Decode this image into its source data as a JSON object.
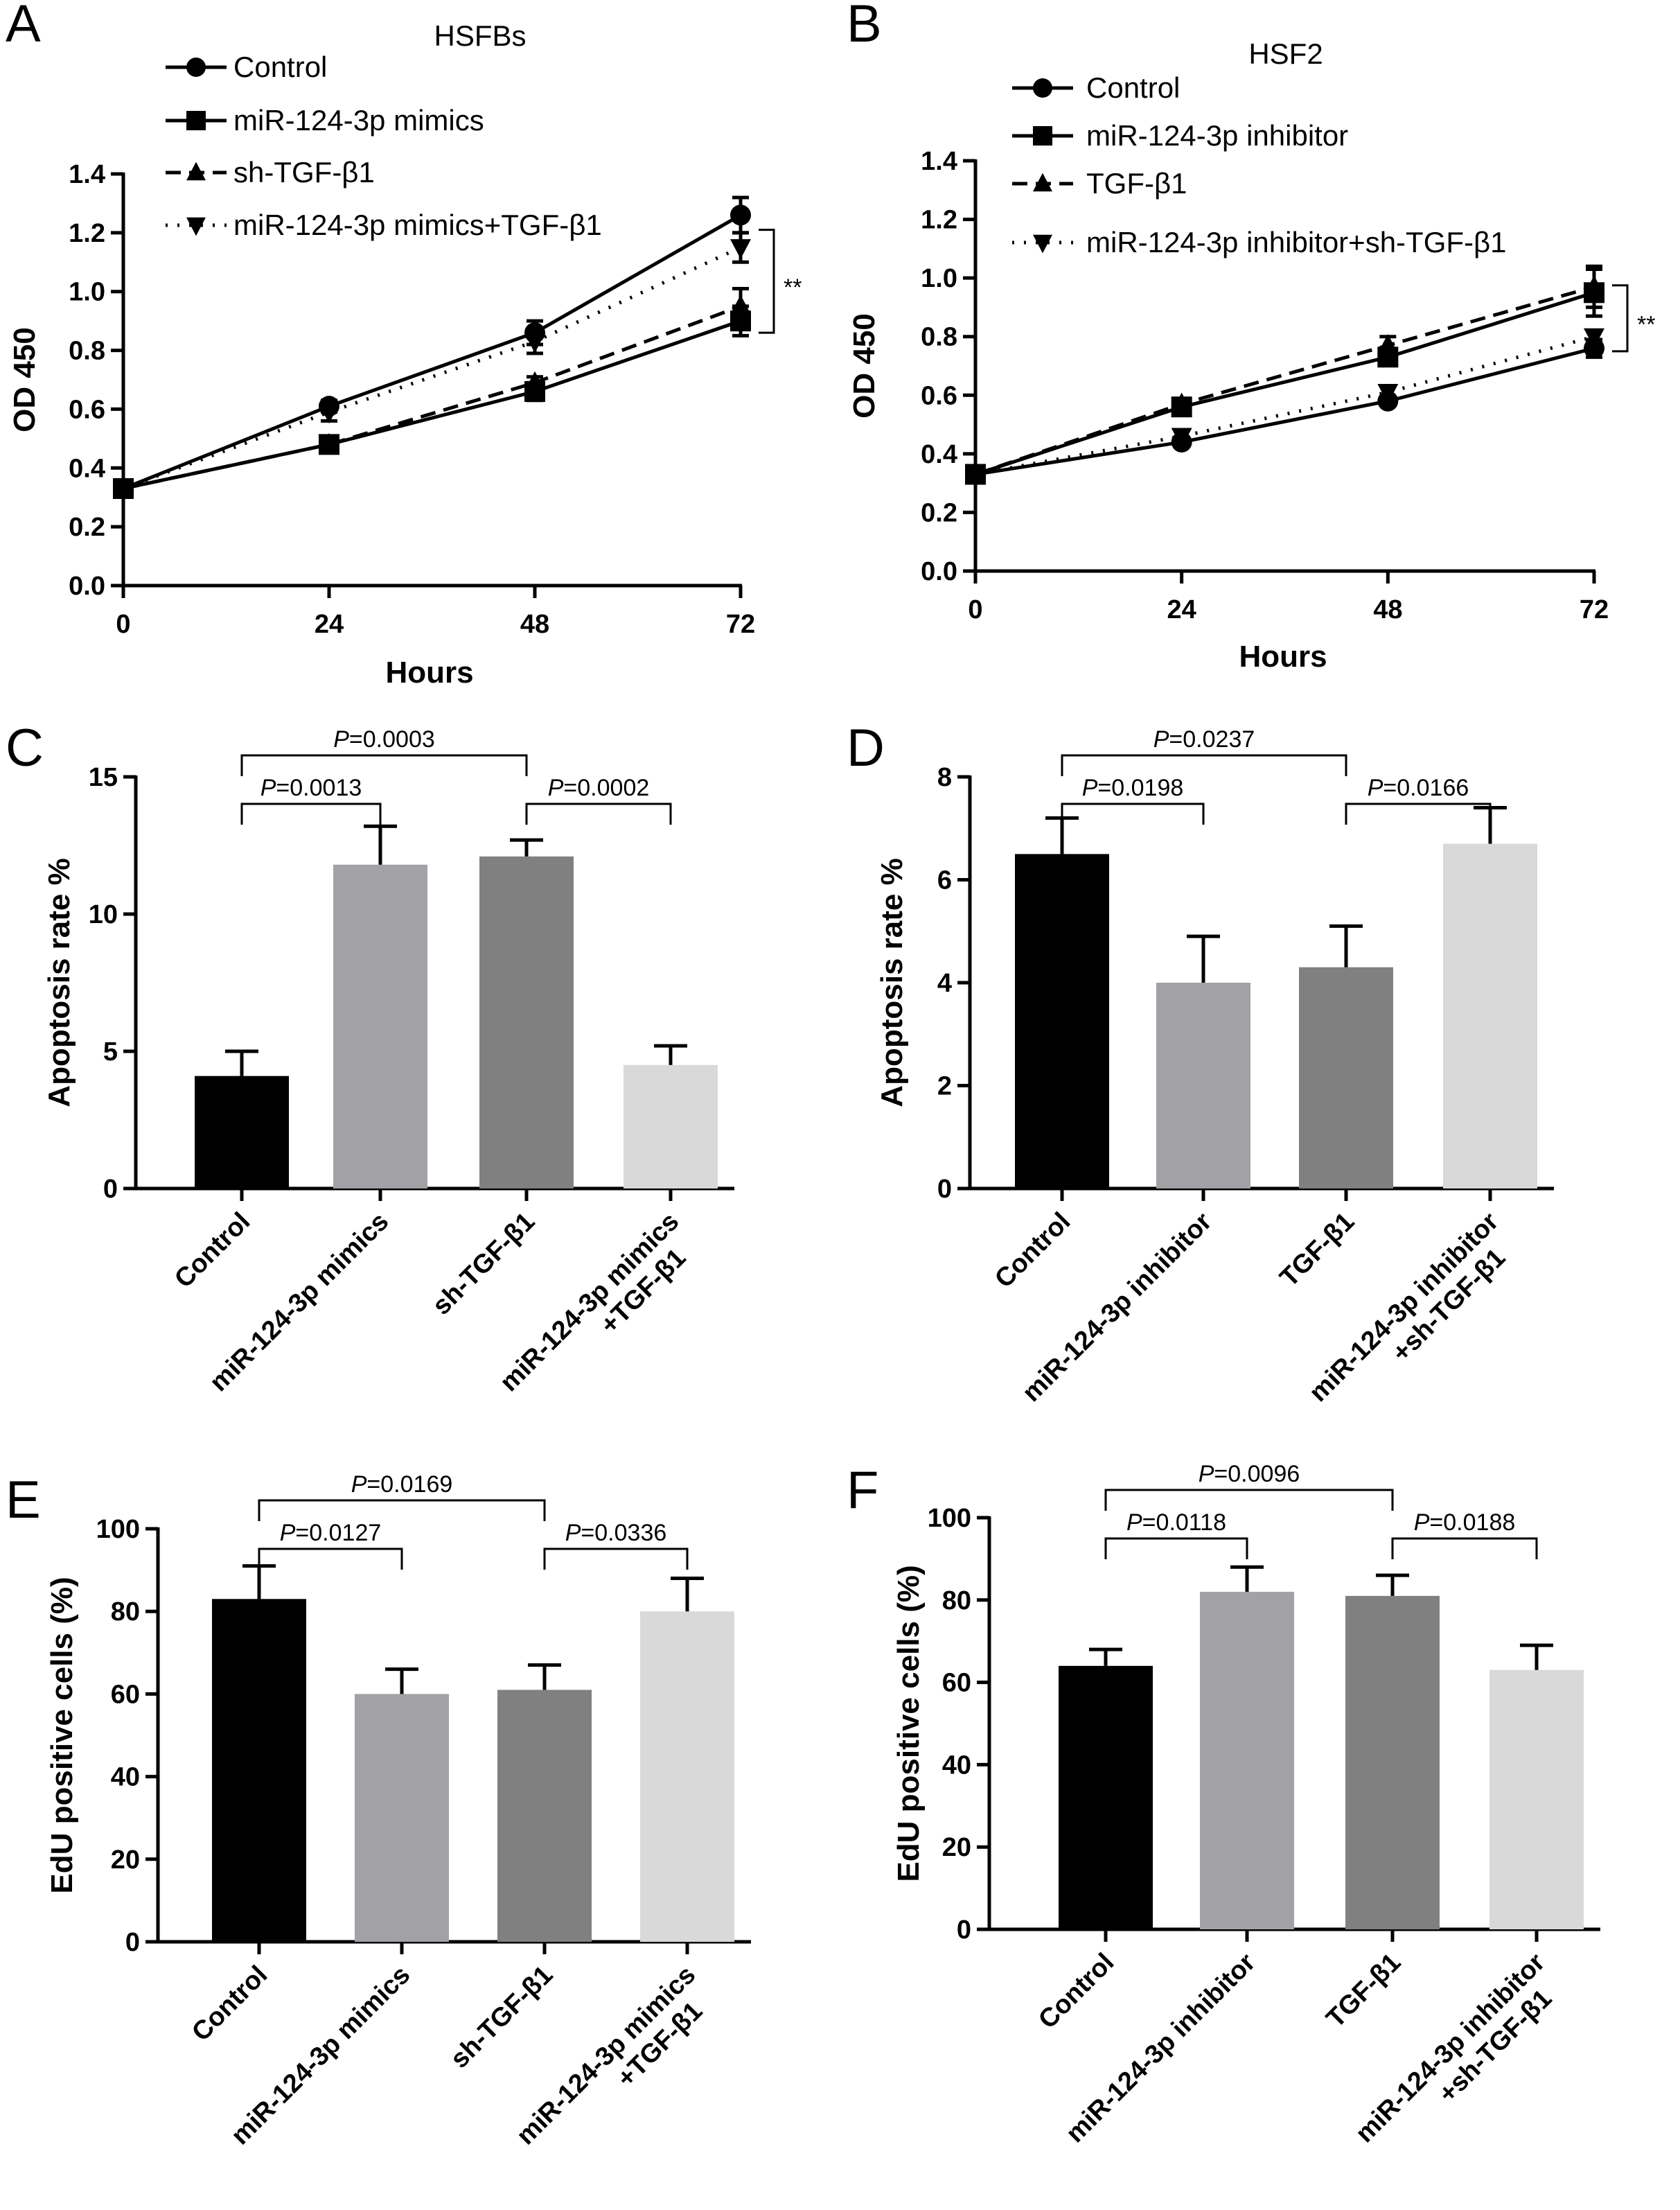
{
  "colors": {
    "black": "#000000",
    "bar_gray1": "#a2a2a6",
    "bar_gray2": "#808080",
    "bar_gray3": "#d9d9d9"
  },
  "chart_data": [
    {
      "panel": "A",
      "type": "line",
      "title": "HSFBs",
      "xlabel": "Hours",
      "ylabel": "OD 450",
      "x": [
        0,
        24,
        48,
        72
      ],
      "xlim": [
        0,
        72
      ],
      "ylim": [
        0,
        1.4
      ],
      "yticks": [
        "0.0",
        "0.2",
        "0.4",
        "0.6",
        "0.8",
        "1.0",
        "1.2",
        "1.4"
      ],
      "xticks": [
        "0",
        "24",
        "48",
        "72"
      ],
      "legend": "top-left",
      "significance": "**",
      "series": [
        {
          "name": "Control",
          "marker": "circle",
          "line": "solid",
          "values": [
            0.33,
            0.61,
            0.86,
            1.26
          ],
          "err": [
            0.01,
            0.02,
            0.04,
            0.06
          ]
        },
        {
          "name": "miR-124-3p mimics",
          "marker": "square",
          "line": "solid",
          "values": [
            0.33,
            0.48,
            0.66,
            0.9
          ],
          "err": [
            0.01,
            0.01,
            0.03,
            0.05
          ]
        },
        {
          "name": "sh-TGF-β1",
          "marker": "triangle-up",
          "line": "dashed",
          "values": [
            0.33,
            0.48,
            0.69,
            0.95
          ],
          "err": [
            0.01,
            0.01,
            0.02,
            0.06
          ]
        },
        {
          "name": "miR-124-3p mimics+TGF-β1",
          "marker": "triangle-down",
          "line": "dotted",
          "values": [
            0.33,
            0.59,
            0.83,
            1.15
          ],
          "err": [
            0.01,
            0.03,
            0.04,
            0.05
          ]
        }
      ]
    },
    {
      "panel": "B",
      "type": "line",
      "title": "HSF2",
      "xlabel": "Hours",
      "ylabel": "OD 450",
      "x": [
        0,
        24,
        48,
        72
      ],
      "xlim": [
        0,
        72
      ],
      "ylim": [
        0,
        1.4
      ],
      "yticks": [
        "0.0",
        "0.2",
        "0.4",
        "0.6",
        "0.8",
        "1.0",
        "1.2",
        "1.4"
      ],
      "xticks": [
        "0",
        "24",
        "48",
        "72"
      ],
      "legend": "top-left",
      "significance": "**",
      "series": [
        {
          "name": "Control",
          "marker": "circle",
          "line": "solid",
          "values": [
            0.33,
            0.44,
            0.58,
            0.76
          ],
          "err": [
            0.01,
            0.01,
            0.01,
            0.03
          ]
        },
        {
          "name": "miR-124-3p inhibitor",
          "marker": "square",
          "line": "solid",
          "values": [
            0.33,
            0.56,
            0.73,
            0.95
          ],
          "err": [
            0.01,
            0.01,
            0.02,
            0.08
          ]
        },
        {
          "name": "TGF-β1",
          "marker": "triangle-up",
          "line": "dashed",
          "values": [
            0.33,
            0.57,
            0.77,
            0.97
          ],
          "err": [
            0.01,
            0.01,
            0.03,
            0.07
          ]
        },
        {
          "name": "miR-124-3p inhibitor+sh-TGF-β1",
          "marker": "triangle-down",
          "line": "dotted",
          "values": [
            0.33,
            0.46,
            0.61,
            0.8
          ],
          "err": [
            0.01,
            0.01,
            0.01,
            0.02
          ]
        }
      ]
    },
    {
      "panel": "C",
      "type": "bar",
      "ylabel": "Apoptosis rate %",
      "ylim": [
        0,
        15
      ],
      "yticks": [
        "0",
        "5",
        "10",
        "15"
      ],
      "categories": [
        "Control",
        "miR-124-3p mimics",
        "sh-TGF-β1",
        "miR-124-3p mimics\n+TGF-β1"
      ],
      "values": [
        4.1,
        11.8,
        12.1,
        4.5
      ],
      "err": [
        0.9,
        1.4,
        0.6,
        0.7
      ],
      "comparisons": [
        {
          "pair": [
            0,
            2
          ],
          "label": "P=0.0003"
        },
        {
          "pair": [
            0,
            1
          ],
          "label": "P=0.0013"
        },
        {
          "pair": [
            2,
            3
          ],
          "label": "P=0.0002"
        }
      ]
    },
    {
      "panel": "D",
      "type": "bar",
      "ylabel": "Apoptosis rate %",
      "ylim": [
        0,
        8
      ],
      "yticks": [
        "0",
        "2",
        "4",
        "6",
        "8"
      ],
      "categories": [
        "Control",
        "miR-124-3p inhibitor",
        "TGF-β1",
        "miR-124-3p inhibitor\n+sh-TGF-β1"
      ],
      "values": [
        6.5,
        4.0,
        4.3,
        6.7
      ],
      "err": [
        0.7,
        0.9,
        0.8,
        0.7
      ],
      "comparisons": [
        {
          "pair": [
            0,
            2
          ],
          "label": "P=0.0237"
        },
        {
          "pair": [
            0,
            1
          ],
          "label": "P=0.0198"
        },
        {
          "pair": [
            2,
            3
          ],
          "label": "P=0.0166"
        }
      ]
    },
    {
      "panel": "E",
      "type": "bar",
      "ylabel": "EdU positive cells (%)",
      "ylim": [
        0,
        100
      ],
      "yticks": [
        "0",
        "20",
        "40",
        "60",
        "80",
        "100"
      ],
      "categories": [
        "Control",
        "miR-124-3p mimics",
        "sh-TGF-β1",
        "miR-124-3p mimics\n+TGF-β1"
      ],
      "values": [
        83,
        60,
        61,
        80
      ],
      "err": [
        8,
        6,
        6,
        8
      ],
      "comparisons": [
        {
          "pair": [
            0,
            2
          ],
          "label": "P=0.0169"
        },
        {
          "pair": [
            0,
            1
          ],
          "label": "P=0.0127"
        },
        {
          "pair": [
            2,
            3
          ],
          "label": "P=0.0336"
        }
      ]
    },
    {
      "panel": "F",
      "type": "bar",
      "ylabel": "EdU positive cells (%)",
      "ylim": [
        0,
        100
      ],
      "yticks": [
        "0",
        "20",
        "40",
        "60",
        "80",
        "100"
      ],
      "categories": [
        "Control",
        "miR-124-3p inhibitor",
        "TGF-β1",
        "miR-124-3p inhibitor\n+sh-TGF-β1"
      ],
      "values": [
        64,
        82,
        81,
        63
      ],
      "err": [
        4,
        6,
        5,
        6
      ],
      "comparisons": [
        {
          "pair": [
            0,
            2
          ],
          "label": "P=0.0096"
        },
        {
          "pair": [
            0,
            1
          ],
          "label": "P=0.0118"
        },
        {
          "pair": [
            2,
            3
          ],
          "label": "P=0.0188"
        }
      ]
    }
  ]
}
